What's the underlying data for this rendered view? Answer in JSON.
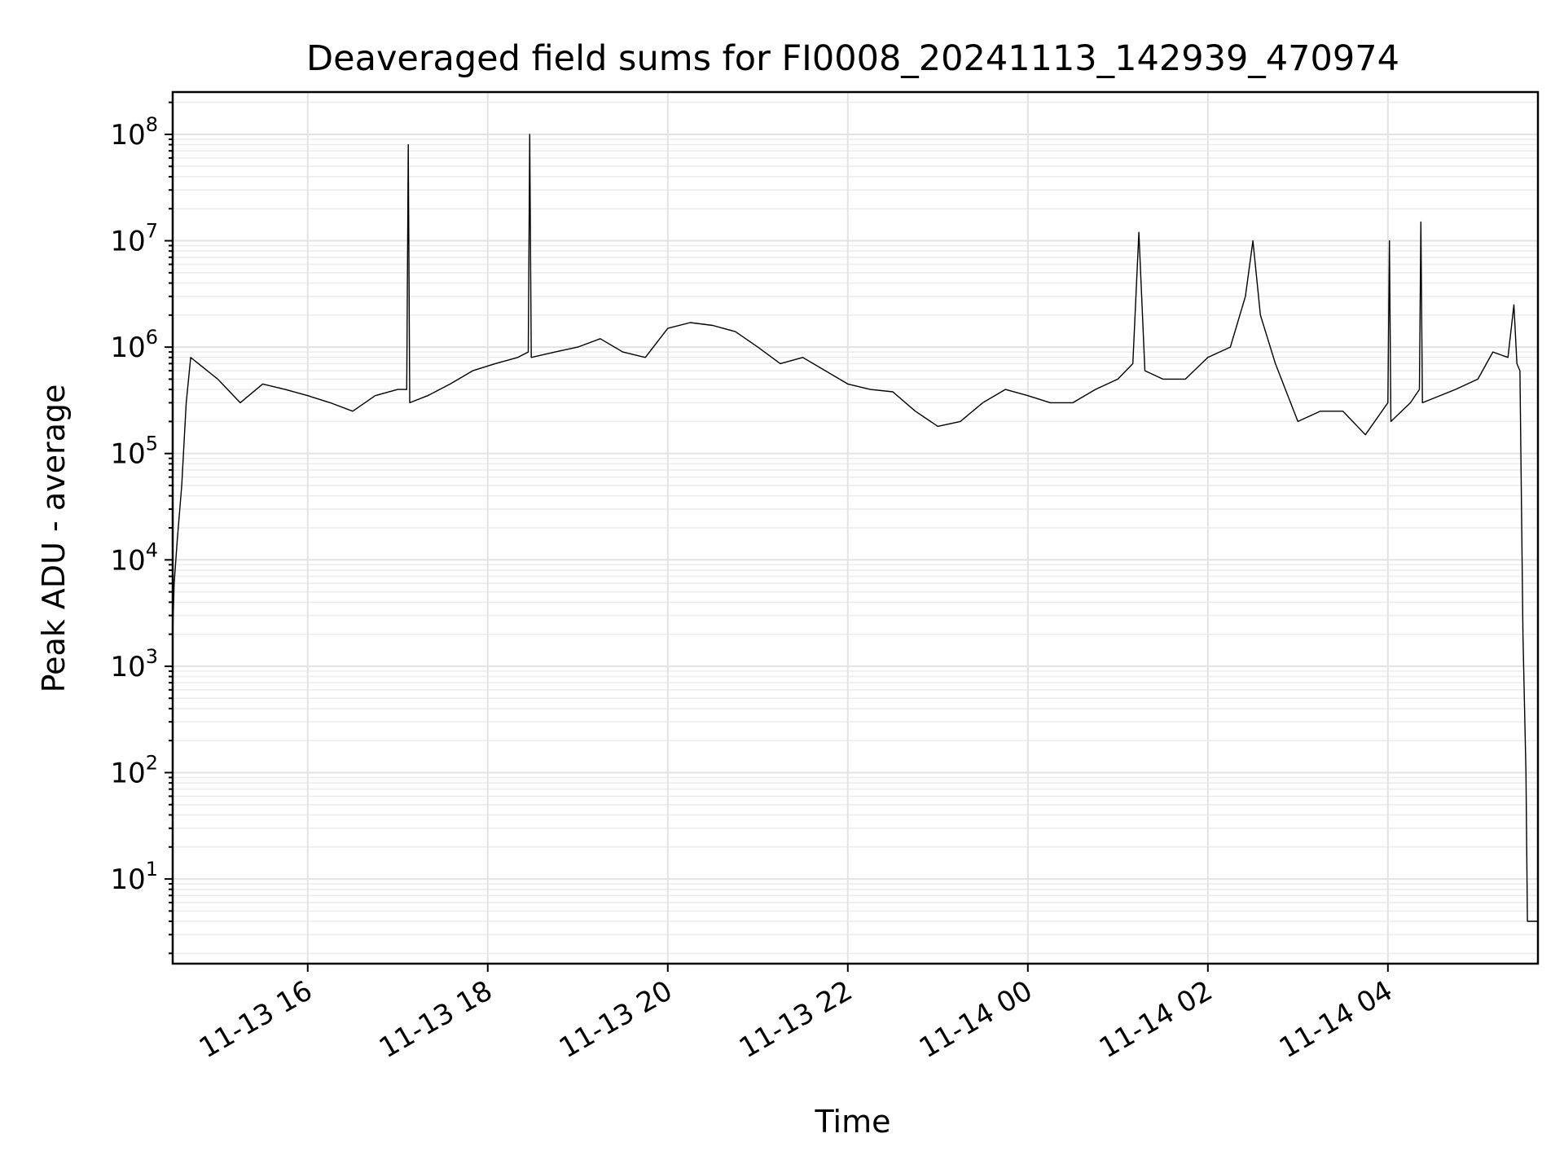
{
  "chart_data": {
    "type": "line",
    "title": "Deaveraged field sums for FI0008_20241113_142939_470974",
    "xlabel": "Time",
    "ylabel": "Peak ADU - average",
    "yscale": "log",
    "xlim": [
      "2024-11-13 14:30",
      "2024-11-14 05:40"
    ],
    "ylim": [
      1.6,
      250000000
    ],
    "grid": true,
    "x_ticks": [
      {
        "value": "2024-11-13 16:00",
        "label": "11-13 16"
      },
      {
        "value": "2024-11-13 18:00",
        "label": "11-13 18"
      },
      {
        "value": "2024-11-13 20:00",
        "label": "11-13 20"
      },
      {
        "value": "2024-11-13 22:00",
        "label": "11-13 22"
      },
      {
        "value": "2024-11-14 00:00",
        "label": "11-14 00"
      },
      {
        "value": "2024-11-14 02:00",
        "label": "11-14 02"
      },
      {
        "value": "2024-11-14 04:00",
        "label": "11-14 04"
      }
    ],
    "y_ticks": [
      {
        "value": 10,
        "base": "10",
        "exp": "1"
      },
      {
        "value": 100,
        "base": "10",
        "exp": "2"
      },
      {
        "value": 1000,
        "base": "10",
        "exp": "3"
      },
      {
        "value": 10000,
        "base": "10",
        "exp": "4"
      },
      {
        "value": 100000,
        "base": "10",
        "exp": "5"
      },
      {
        "value": 1000000,
        "base": "10",
        "exp": "6"
      },
      {
        "value": 10000000,
        "base": "10",
        "exp": "7"
      },
      {
        "value": 100000000,
        "base": "10",
        "exp": "8"
      }
    ],
    "series": [
      {
        "color": "#000000",
        "points": [
          [
            "2024-11-13 14:30",
            2000
          ],
          [
            "2024-11-13 14:31",
            6000
          ],
          [
            "2024-11-13 14:33",
            15000
          ],
          [
            "2024-11-13 14:36",
            50000
          ],
          [
            "2024-11-13 14:39",
            300000
          ],
          [
            "2024-11-13 14:42",
            800000
          ],
          [
            "2024-11-13 15:00",
            500000
          ],
          [
            "2024-11-13 15:15",
            300000
          ],
          [
            "2024-11-13 15:30",
            450000
          ],
          [
            "2024-11-13 15:45",
            400000
          ],
          [
            "2024-11-13 16:00",
            350000
          ],
          [
            "2024-11-13 16:15",
            300000
          ],
          [
            "2024-11-13 16:30",
            250000
          ],
          [
            "2024-11-13 16:45",
            350000
          ],
          [
            "2024-11-13 17:00",
            400000
          ],
          [
            "2024-11-13 17:06",
            400000
          ],
          [
            "2024-11-13 17:07",
            80000000
          ],
          [
            "2024-11-13 17:08",
            300000
          ],
          [
            "2024-11-13 17:20",
            350000
          ],
          [
            "2024-11-13 17:35",
            450000
          ],
          [
            "2024-11-13 17:50",
            600000
          ],
          [
            "2024-11-13 18:05",
            700000
          ],
          [
            "2024-11-13 18:20",
            800000
          ],
          [
            "2024-11-13 18:27",
            900000
          ],
          [
            "2024-11-13 18:28",
            100000000
          ],
          [
            "2024-11-13 18:29",
            800000
          ],
          [
            "2024-11-13 18:45",
            900000
          ],
          [
            "2024-11-13 19:00",
            1000000
          ],
          [
            "2024-11-13 19:15",
            1200000
          ],
          [
            "2024-11-13 19:30",
            900000
          ],
          [
            "2024-11-13 19:45",
            800000
          ],
          [
            "2024-11-13 20:00",
            1500000
          ],
          [
            "2024-11-13 20:15",
            1700000
          ],
          [
            "2024-11-13 20:30",
            1600000
          ],
          [
            "2024-11-13 20:45",
            1400000
          ],
          [
            "2024-11-13 21:00",
            1000000
          ],
          [
            "2024-11-13 21:15",
            700000
          ],
          [
            "2024-11-13 21:30",
            800000
          ],
          [
            "2024-11-13 21:45",
            600000
          ],
          [
            "2024-11-13 22:00",
            450000
          ],
          [
            "2024-11-13 22:15",
            400000
          ],
          [
            "2024-11-13 22:30",
            380000
          ],
          [
            "2024-11-13 22:45",
            250000
          ],
          [
            "2024-11-13 23:00",
            180000
          ],
          [
            "2024-11-13 23:15",
            200000
          ],
          [
            "2024-11-13 23:30",
            300000
          ],
          [
            "2024-11-13 23:45",
            400000
          ],
          [
            "2024-11-14 00:00",
            350000
          ],
          [
            "2024-11-14 00:15",
            300000
          ],
          [
            "2024-11-14 00:30",
            300000
          ],
          [
            "2024-11-14 00:45",
            400000
          ],
          [
            "2024-11-14 01:00",
            500000
          ],
          [
            "2024-11-14 01:10",
            700000
          ],
          [
            "2024-11-14 01:14",
            12000000
          ],
          [
            "2024-11-14 01:18",
            600000
          ],
          [
            "2024-11-14 01:30",
            500000
          ],
          [
            "2024-11-14 01:45",
            500000
          ],
          [
            "2024-11-14 02:00",
            800000
          ],
          [
            "2024-11-14 02:15",
            1000000
          ],
          [
            "2024-11-14 02:25",
            3000000
          ],
          [
            "2024-11-14 02:30",
            10000000
          ],
          [
            "2024-11-14 02:35",
            2000000
          ],
          [
            "2024-11-14 02:45",
            700000
          ],
          [
            "2024-11-14 03:00",
            200000
          ],
          [
            "2024-11-14 03:15",
            250000
          ],
          [
            "2024-11-14 03:30",
            250000
          ],
          [
            "2024-11-14 03:45",
            150000
          ],
          [
            "2024-11-14 04:00",
            300000
          ],
          [
            "2024-11-14 04:01",
            10000000
          ],
          [
            "2024-11-14 04:02",
            200000
          ],
          [
            "2024-11-14 04:15",
            300000
          ],
          [
            "2024-11-14 04:21",
            400000
          ],
          [
            "2024-11-14 04:22",
            15000000
          ],
          [
            "2024-11-14 04:23",
            300000
          ],
          [
            "2024-11-14 04:45",
            400000
          ],
          [
            "2024-11-14 05:00",
            500000
          ],
          [
            "2024-11-14 05:10",
            900000
          ],
          [
            "2024-11-14 05:20",
            800000
          ],
          [
            "2024-11-14 05:24",
            2500000
          ],
          [
            "2024-11-14 05:26",
            700000
          ],
          [
            "2024-11-14 05:28",
            600000
          ],
          [
            "2024-11-14 05:30",
            2000
          ],
          [
            "2024-11-14 05:32",
            100
          ],
          [
            "2024-11-14 05:33",
            4
          ],
          [
            "2024-11-14 05:40",
            4
          ]
        ]
      }
    ]
  }
}
